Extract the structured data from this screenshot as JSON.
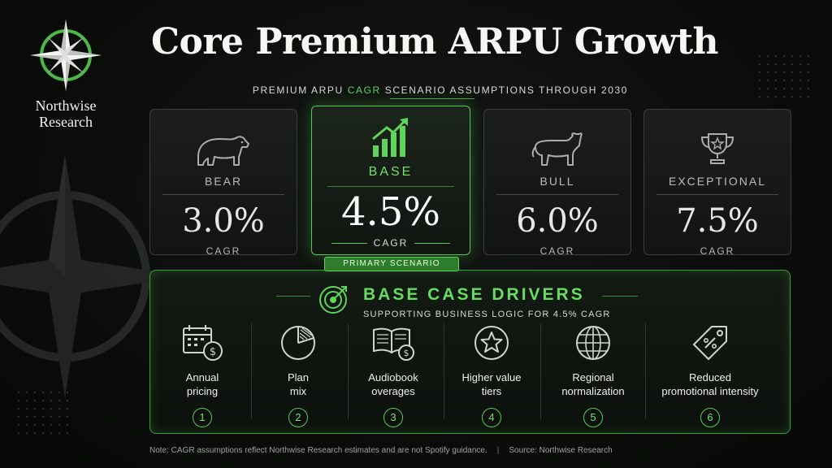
{
  "logo": {
    "line1": "Northwise",
    "line2": "Research"
  },
  "title": "Core Premium ARPU Growth",
  "subtitle": {
    "pre": "PREMIUM ARPU ",
    "highlight": "CAGR",
    "post": " SCENARIO ASSUMPTIONS THROUGH 2030"
  },
  "scenarios": [
    {
      "label": "BEAR",
      "value": "3.0%",
      "unit": "CAGR",
      "icon": "bear-icon"
    },
    {
      "label": "BASE",
      "value": "4.5%",
      "unit": "CAGR",
      "icon": "growth-chart-icon"
    },
    {
      "label": "BULL",
      "value": "6.0%",
      "unit": "CAGR",
      "icon": "bull-icon"
    },
    {
      "label": "EXCEPTIONAL",
      "value": "7.5%",
      "unit": "CAGR",
      "icon": "trophy-icon"
    }
  ],
  "badge": "PRIMARY SCENARIO",
  "drivers_panel": {
    "title": "BASE CASE DRIVERS",
    "subtitle": "SUPPORTING BUSINESS LOGIC FOR 4.5% CAGR",
    "items": [
      {
        "line1": "Annual",
        "line2": "pricing",
        "num": "1",
        "icon": "calendar-dollar-icon"
      },
      {
        "line1": "Plan",
        "line2": "mix",
        "num": "2",
        "icon": "pie-chart-icon"
      },
      {
        "line1": "Audiobook",
        "line2": "overages",
        "num": "3",
        "icon": "book-dollar-icon"
      },
      {
        "line1": "Higher value",
        "line2": "tiers",
        "num": "4",
        "icon": "star-icon"
      },
      {
        "line1": "Regional",
        "line2": "normalization",
        "num": "5",
        "icon": "globe-icon"
      },
      {
        "line1": "Reduced",
        "line2": "promotional intensity",
        "num": "6",
        "icon": "discount-tag-icon"
      }
    ]
  },
  "footer": {
    "note": "Note: CAGR assumptions reflect Northwise Research estimates and are not Spotify guidance.",
    "separator": "|",
    "source": "Source:  Northwise Research"
  },
  "colors": {
    "accent": "#5fd35a",
    "background": "#0b0d0b",
    "card_border": "#3a3f3a"
  }
}
